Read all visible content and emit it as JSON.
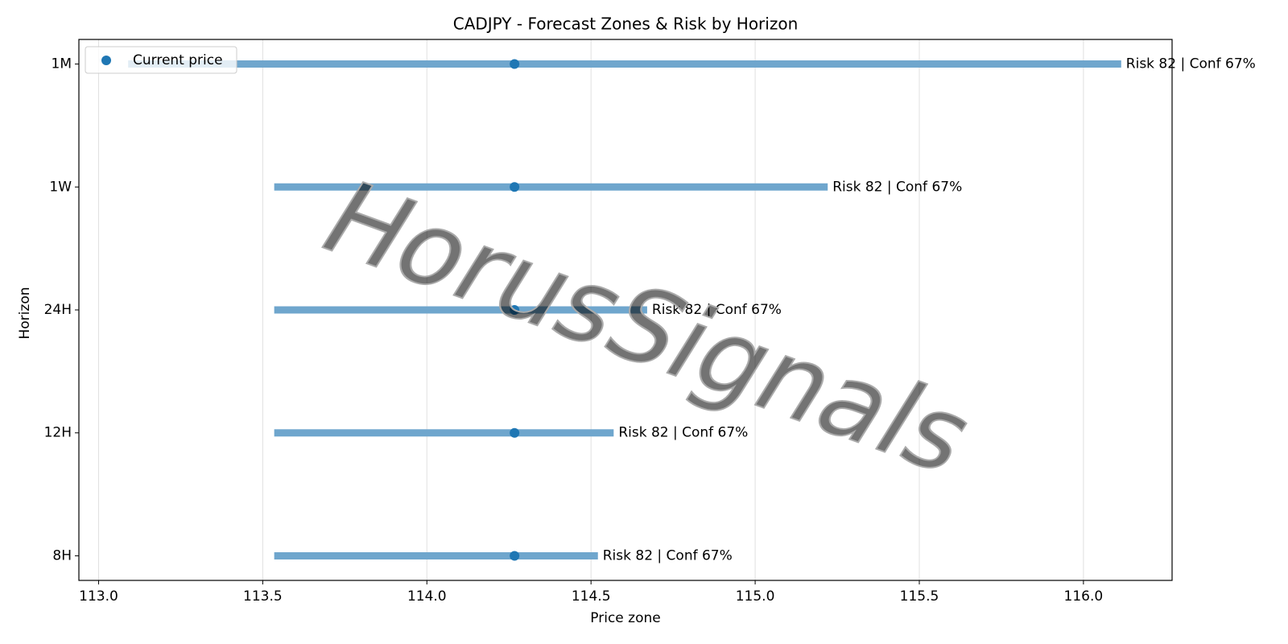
{
  "chart_data": {
    "type": "range",
    "title": "CADJPY - Forecast Zones & Risk by Horizon",
    "xlabel": "Price zone",
    "ylabel": "Horizon",
    "categories": [
      "1M",
      "1W",
      "24H",
      "12H",
      "8H"
    ],
    "zones": {
      "color": "#6fa6cd",
      "low": [
        113.09,
        113.535,
        113.535,
        113.535,
        113.535
      ],
      "high": [
        116.115,
        115.221,
        114.671,
        114.569,
        114.521
      ]
    },
    "series": [
      {
        "name": "Current price",
        "color": "#1f77b4",
        "values": [
          114.267,
          114.267,
          114.267,
          114.267,
          114.267
        ]
      }
    ],
    "annotations": [
      "Risk 82 | Conf 67%",
      "Risk 82 | Conf 67%",
      "Risk 82 | Conf 67%",
      "Risk 82 | Conf 67%",
      "Risk 82 | Conf 67%"
    ],
    "xlim": [
      112.94,
      116.27
    ],
    "xticks": [
      {
        "value": 113,
        "label": "113.0"
      },
      {
        "value": 113.5,
        "label": "113.5"
      },
      {
        "value": 114,
        "label": "114.0"
      },
      {
        "value": 114.5,
        "label": "114.5"
      },
      {
        "value": 115,
        "label": "115.0"
      },
      {
        "value": 115.5,
        "label": "115.5"
      },
      {
        "value": 116,
        "label": "116.0"
      }
    ],
    "grid": true,
    "legend": "upper left",
    "watermark": "HorusSignals"
  }
}
